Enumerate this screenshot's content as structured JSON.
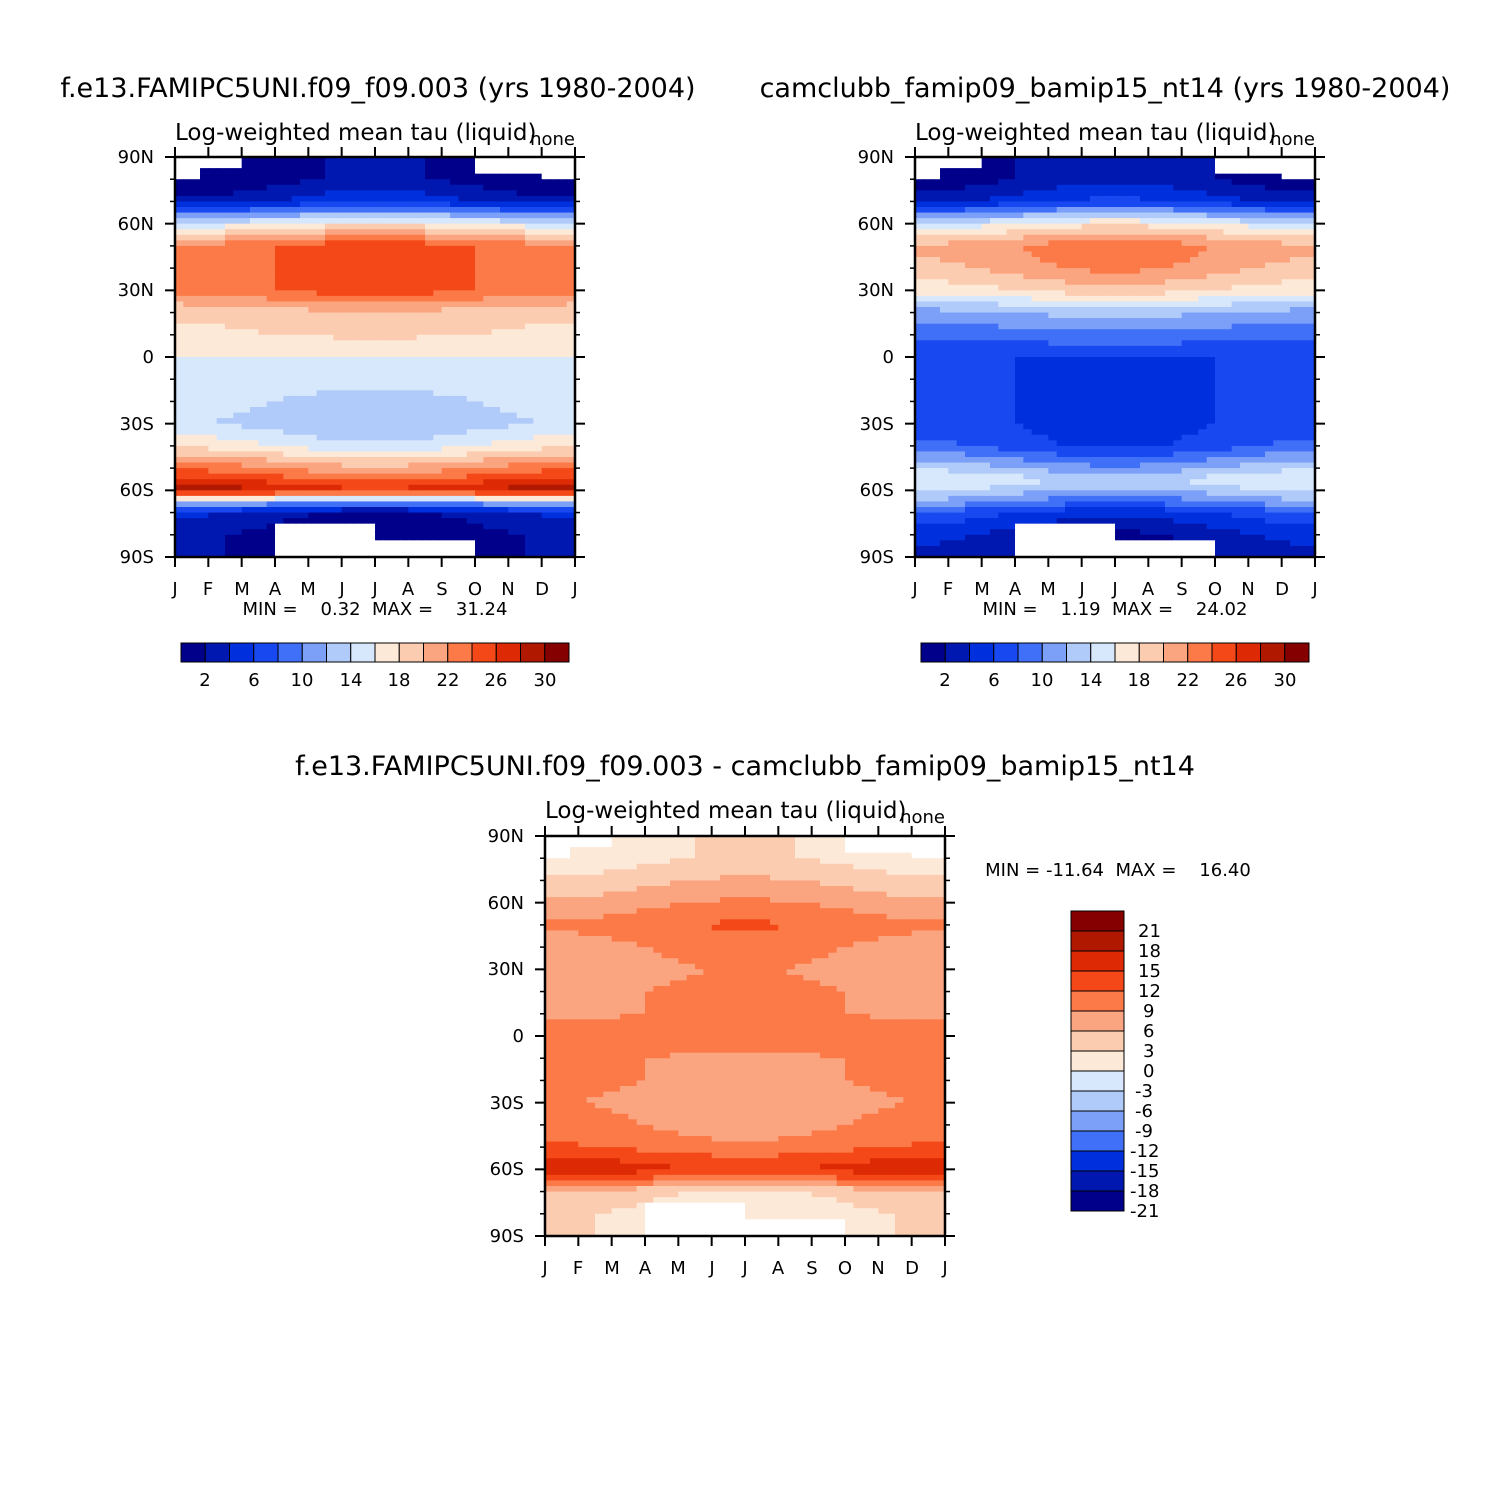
{
  "colors": {
    "abs_palette": [
      "#00008a",
      "#0018b0",
      "#0030dd",
      "#1848f0",
      "#4070f8",
      "#7ca0f8",
      "#b0cbfa",
      "#d8e8fc",
      "#fde9d8",
      "#fcccb0",
      "#fba480",
      "#fb7a48",
      "#f54818",
      "#dd2a05",
      "#b01800",
      "#850000"
    ],
    "diff_palette": [
      "#00008a",
      "#0018b0",
      "#0030dd",
      "#4070f8",
      "#7ca0f8",
      "#b0cbfa",
      "#d8e8fc",
      "#fde9d8",
      "#fcccb0",
      "#fba480",
      "#fb7a48",
      "#f54818",
      "#dd2a05",
      "#b01800",
      "#850000"
    ],
    "missing": "#ffffff"
  },
  "panels": [
    {
      "case_title": "f.e13.FAMIPC5UNI.f09_f09.003 (yrs 1980-2004)",
      "subtitle": "Log-weighted mean tau (liquid)",
      "units": "none",
      "yticks": [
        "90N",
        "60N",
        "30N",
        "0",
        "30S",
        "60S",
        "90S"
      ],
      "xticks": [
        "J",
        "F",
        "M",
        "A",
        "M",
        "J",
        "J",
        "A",
        "S",
        "O",
        "N",
        "D",
        "J"
      ],
      "minmax": "MIN =    0.32  MAX =    31.24",
      "colorbar_labels": [
        "2",
        "6",
        "10",
        "14",
        "18",
        "22",
        "26",
        "30"
      ]
    },
    {
      "case_title": "camclubb_famip09_bamip15_nt14 (yrs 1980-2004)",
      "subtitle": "Log-weighted mean tau (liquid)",
      "units": "none",
      "yticks": [
        "90N",
        "60N",
        "30N",
        "0",
        "30S",
        "60S",
        "90S"
      ],
      "xticks": [
        "J",
        "F",
        "M",
        "A",
        "M",
        "J",
        "J",
        "A",
        "S",
        "O",
        "N",
        "D",
        "J"
      ],
      "minmax": "MIN =    1.19  MAX =    24.02",
      "colorbar_labels": [
        "2",
        "6",
        "10",
        "14",
        "18",
        "22",
        "26",
        "30"
      ]
    },
    {
      "case_title": "f.e13.FAMIPC5UNI.f09_f09.003 - camclubb_famip09_bamip15_nt14",
      "subtitle": "Log-weighted mean tau (liquid)",
      "units": "none",
      "yticks": [
        "90N",
        "60N",
        "30N",
        "0",
        "30S",
        "60S",
        "90S"
      ],
      "xticks": [
        "J",
        "F",
        "M",
        "A",
        "M",
        "J",
        "J",
        "A",
        "S",
        "O",
        "N",
        "D",
        "J"
      ],
      "minmax": "MIN = -11.64  MAX =    16.40",
      "colorbar_labels": [
        "21",
        "18",
        "15",
        "12",
        "9",
        "6",
        "3",
        "0",
        "-3",
        "-6",
        "-9",
        "-12",
        "-15",
        "-18",
        "-21"
      ]
    }
  ],
  "chart_data": [
    {
      "type": "heatmap",
      "title": "f.e13.FAMIPC5UNI.f09_f09.003 (yrs 1980-2004)",
      "subtitle": "Log-weighted mean tau (liquid)",
      "x": [
        "J",
        "F",
        "M",
        "A",
        "M",
        "J",
        "J",
        "A",
        "S",
        "O",
        "N",
        "D",
        "J"
      ],
      "y_range": [
        -90,
        90
      ],
      "min": 0.32,
      "max": 31.24,
      "color_levels": [
        0,
        2,
        4,
        6,
        8,
        10,
        12,
        14,
        16,
        18,
        20,
        22,
        24,
        26,
        28,
        30,
        32
      ],
      "profile_lat": [
        -90,
        -80,
        -70,
        -65,
        -60,
        -55,
        -50,
        -40,
        -30,
        -20,
        -10,
        0,
        10,
        20,
        30,
        40,
        50,
        60,
        70,
        80,
        90
      ],
      "profile_val": [
        1,
        1,
        3,
        12,
        28,
        25,
        22,
        16,
        13,
        14,
        15,
        16,
        18,
        19,
        24,
        24,
        24,
        16,
        4,
        1,
        1
      ],
      "seasonal_lat": [
        -60,
        -50,
        -40,
        -30,
        -20,
        -10,
        0,
        10,
        20,
        30,
        40,
        50,
        60,
        70,
        80
      ],
      "seasonal_amp": [
        1,
        1,
        1,
        1,
        1,
        1,
        1,
        1,
        1,
        1,
        1,
        1,
        1,
        1,
        1
      ],
      "missing_regions_north": [
        [
          0,
          0.7,
          80,
          90
        ],
        [
          0.7,
          2,
          85,
          90
        ],
        [
          9,
          11,
          82,
          90
        ],
        [
          11,
          12.5,
          80,
          90
        ]
      ],
      "missing_regions_south": [
        [
          3,
          6,
          -90,
          -75
        ],
        [
          6,
          9,
          -90,
          -82
        ]
      ]
    },
    {
      "type": "heatmap",
      "title": "camclubb_famip09_bamip15_nt14 (yrs 1980-2004)",
      "subtitle": "Log-weighted mean tau (liquid)",
      "x": [
        "J",
        "F",
        "M",
        "A",
        "M",
        "J",
        "J",
        "A",
        "S",
        "O",
        "N",
        "D",
        "J"
      ],
      "y_range": [
        -90,
        90
      ],
      "min": 1.19,
      "max": 24.02,
      "color_levels": [
        0,
        2,
        4,
        6,
        8,
        10,
        12,
        14,
        16,
        18,
        20,
        22,
        24,
        26,
        28,
        30,
        32
      ],
      "profile_lat": [
        -90,
        -80,
        -70,
        -65,
        -60,
        -55,
        -50,
        -40,
        -30,
        -20,
        -10,
        0,
        10,
        20,
        30,
        40,
        50,
        60,
        70,
        80,
        90
      ],
      "profile_val": [
        2,
        3,
        6,
        10,
        13,
        15,
        12,
        7,
        6,
        6,
        6,
        6,
        9,
        12,
        18,
        21,
        22,
        16,
        5,
        2,
        2
      ],
      "seasonal_lat": [
        -60,
        -50,
        -40,
        -30,
        -20,
        -10,
        0,
        10,
        20,
        30,
        40,
        50,
        60,
        70,
        80
      ],
      "seasonal_amp": [
        1,
        1,
        1,
        1,
        1,
        1,
        1,
        1,
        1,
        1,
        1,
        1,
        1,
        1,
        1
      ],
      "missing_regions_north": [
        [
          0,
          0.7,
          80,
          90
        ],
        [
          0.7,
          2,
          85,
          90
        ],
        [
          9,
          11,
          82,
          90
        ],
        [
          11,
          12.5,
          80,
          90
        ]
      ],
      "missing_regions_south": [
        [
          3,
          6,
          -90,
          -75
        ],
        [
          6,
          9,
          -90,
          -82
        ]
      ]
    },
    {
      "type": "heatmap",
      "title": "f.e13.FAMIPC5UNI.f09_f09.003 - camclubb_famip09_bamip15_nt14",
      "subtitle": "Log-weighted mean tau (liquid)",
      "x": [
        "J",
        "F",
        "M",
        "A",
        "M",
        "J",
        "J",
        "A",
        "S",
        "O",
        "N",
        "D",
        "J"
      ],
      "y_range": [
        -90,
        90
      ],
      "min": -11.64,
      "max": 16.4,
      "color_levels": [
        -24,
        -21,
        -18,
        -15,
        -12,
        -9,
        -6,
        -3,
        0,
        3,
        6,
        9,
        12,
        15,
        18,
        21,
        24
      ],
      "profile_lat": [
        -90,
        -80,
        -70,
        -65,
        -60,
        -55,
        -50,
        -40,
        -30,
        -20,
        -10,
        0,
        10,
        20,
        30,
        40,
        50,
        60,
        70,
        80,
        90
      ],
      "profile_val": [
        -1,
        -1,
        1,
        8,
        13,
        11,
        8,
        6,
        5,
        6,
        6,
        7,
        6,
        6,
        5,
        6,
        8,
        5,
        2,
        -1,
        -1
      ],
      "seasonal_lat": [
        -60,
        -50,
        -40,
        -30,
        -20,
        -10,
        0,
        10,
        20,
        30,
        40,
        50,
        60,
        70,
        80
      ],
      "seasonal_amp": [
        1,
        1,
        1,
        1,
        1,
        1,
        1,
        1,
        1,
        1,
        1,
        1,
        1,
        1,
        1
      ],
      "missing_regions_north": [
        [
          0,
          0.7,
          80,
          90
        ],
        [
          0.7,
          2,
          85,
          90
        ],
        [
          9,
          11,
          82,
          90
        ],
        [
          11,
          12.5,
          80,
          90
        ]
      ],
      "missing_regions_south": [
        [
          3,
          6,
          -90,
          -75
        ],
        [
          6,
          9,
          -90,
          -82
        ]
      ]
    }
  ]
}
